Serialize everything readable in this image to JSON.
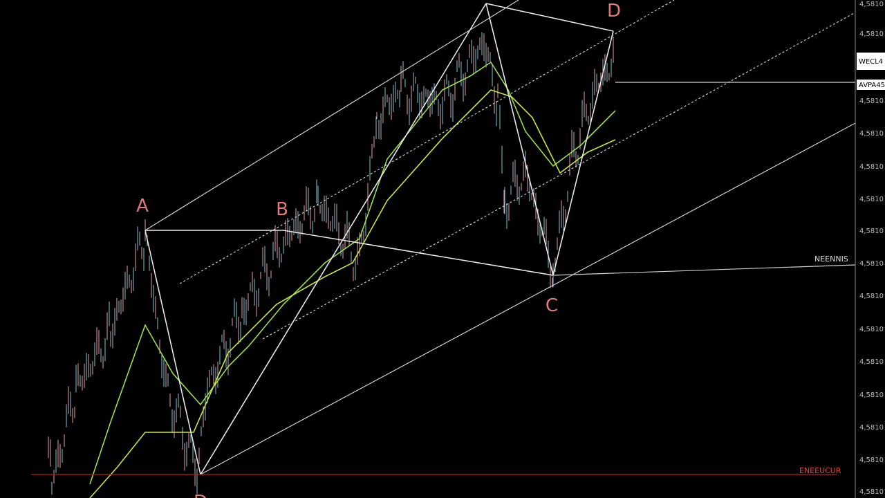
{
  "pattern_points": [
    {
      "label": "A"
    },
    {
      "label": "B"
    },
    {
      "label": "C"
    },
    {
      "label": "D"
    },
    {
      "label": "D"
    }
  ],
  "price_axis": [
    "4,5810",
    "4,5810",
    "4,5810",
    "4,5810",
    "4,5810",
    "4,5810",
    "4,5810",
    "4,5810",
    "4,5810",
    "4,5810",
    "4,5810",
    "4,5810",
    "4,5810",
    "4,5810",
    "4,5810"
  ],
  "price_tags": [
    "WECL4",
    "AVPA45"
  ],
  "annotations": [
    "NEENNIS",
    "ENEEUCUR"
  ]
}
